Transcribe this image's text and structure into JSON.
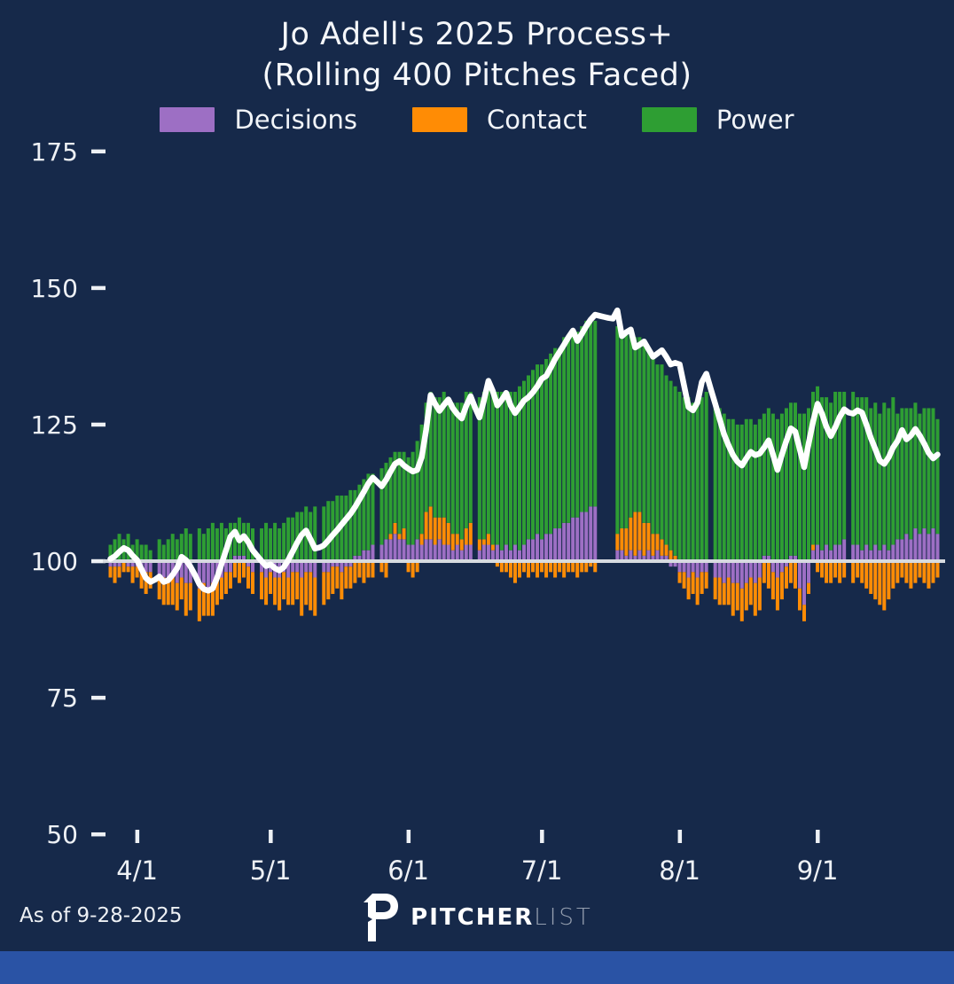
{
  "header": {
    "title_line1": "Jo Adell's 2025 Process+",
    "title_line2": "(Rolling 400 Pitches Faced)"
  },
  "legend": {
    "items": [
      {
        "label": "Decisions",
        "color_key": "decisions"
      },
      {
        "label": "Contact",
        "color_key": "contact"
      },
      {
        "label": "Power",
        "color_key": "power"
      }
    ]
  },
  "footer": {
    "as_of": "As of 9-28-2025",
    "brand_bold": "PITCHER",
    "brand_light": "LIST"
  },
  "colors": {
    "background": "#16294a",
    "decisions": "#9d6fc4",
    "contact": "#ff8c05",
    "power": "#2e9e33",
    "line": "#ffffff",
    "baseline_line": "#d7dbe0",
    "text": "#eef1f5",
    "brand_light_text": "#96a0b0",
    "bottom_bar": "#2a53a5"
  },
  "chart_data": {
    "type": "bar",
    "subtype": "diverging-stacked-bars-with-line",
    "title": "Jo Adell's 2025 Process+",
    "subtitle": "(Rolling 400 Pitches Faced)",
    "xlabel": "",
    "ylabel": "",
    "baseline": 100,
    "ylim": [
      45,
      180
    ],
    "y_ticks": [
      175,
      150,
      125,
      100,
      75,
      50
    ],
    "x_ticks": [
      "4/1",
      "5/1",
      "6/1",
      "7/1",
      "8/1",
      "9/1"
    ],
    "legend_position": "top",
    "grid": false,
    "note": "Bar values are signed offsets from the 100 baseline for each component (Decisions, Contact, Power); positive offsets stack upward from 100, negative stack downward. Last column is the rolling Process+ line value. Days with 0,0,0 are off days / All-Star break (no bar, line continues).",
    "columns": [
      "date",
      "decisions_offset",
      "contact_offset",
      "power_offset",
      "process_plus_line"
    ],
    "series_order": [
      "Decisions",
      "Contact",
      "Power"
    ],
    "line_series_name": "Process+",
    "days": [
      [
        "3/26",
        -1,
        -2,
        3,
        100.4
      ],
      [
        "3/27",
        -1,
        -3,
        4,
        100.9
      ],
      [
        "3/28",
        -1,
        -2,
        5,
        101.7
      ],
      [
        "3/29",
        0,
        -2,
        4,
        102.4
      ],
      [
        "3/30",
        -1,
        -1,
        5,
        102.0
      ],
      [
        "3/31",
        -1,
        -3,
        3,
        101.0
      ],
      [
        "4/1",
        -1,
        -2,
        4,
        100.2
      ],
      [
        "4/2",
        -2,
        -3,
        3,
        98.5
      ],
      [
        "4/3",
        -2,
        -4,
        3,
        96.9
      ],
      [
        "4/4",
        -2,
        -3,
        2,
        96.2
      ],
      [
        "4/5",
        0,
        0,
        0,
        96.6
      ],
      [
        "4/6",
        -3,
        -4,
        4,
        97.2
      ],
      [
        "4/7",
        -3,
        -5,
        3,
        96.2
      ],
      [
        "4/8",
        -4,
        -4,
        4,
        96.5
      ],
      [
        "4/9",
        -3,
        -5,
        5,
        97.5
      ],
      [
        "4/10",
        -4,
        -5,
        4,
        98.7
      ],
      [
        "4/11",
        -3,
        -4,
        5,
        100.8
      ],
      [
        "4/12",
        -4,
        -6,
        6,
        100.2
      ],
      [
        "4/13",
        -4,
        -5,
        5,
        99.0
      ],
      [
        "4/14",
        0,
        0,
        0,
        97.5
      ],
      [
        "4/15",
        -5,
        -6,
        6,
        95.8
      ],
      [
        "4/16",
        -4,
        -6,
        5,
        94.9
      ],
      [
        "4/17",
        -5,
        -5,
        6,
        94.6
      ],
      [
        "4/18",
        -4,
        -6,
        7,
        95.0
      ],
      [
        "4/19",
        -3,
        -5,
        6,
        97.0
      ],
      [
        "4/20",
        -3,
        -4,
        7,
        99.5
      ],
      [
        "4/21",
        -2,
        -4,
        6,
        102.0
      ],
      [
        "4/22",
        -2,
        -3,
        7,
        104.5
      ],
      [
        "4/23",
        1,
        -3,
        6,
        105.4
      ],
      [
        "4/24",
        1,
        -4,
        7,
        103.8
      ],
      [
        "4/25",
        1,
        -3,
        6,
        104.6
      ],
      [
        "4/26",
        -1,
        -4,
        7,
        103.5
      ],
      [
        "4/27",
        -2,
        -4,
        6,
        102.0
      ],
      [
        "4/28",
        0,
        0,
        0,
        101.0
      ],
      [
        "4/29",
        -2,
        -5,
        6,
        100.0
      ],
      [
        "4/30",
        -3,
        -5,
        7,
        99.1
      ],
      [
        "5/1",
        -2,
        -4,
        6,
        99.4
      ],
      [
        "5/2",
        -3,
        -5,
        7,
        98.7
      ],
      [
        "5/3",
        -3,
        -6,
        6,
        98.3
      ],
      [
        "5/4",
        -2,
        -5,
        7,
        98.9
      ],
      [
        "5/5",
        -3,
        -5,
        8,
        100.2
      ],
      [
        "5/6",
        -2,
        -6,
        8,
        101.8
      ],
      [
        "5/7",
        -2,
        -5,
        9,
        103.4
      ],
      [
        "5/8",
        -3,
        -7,
        9,
        104.8
      ],
      [
        "5/9",
        -2,
        -6,
        10,
        105.6
      ],
      [
        "5/10",
        -2,
        -7,
        9,
        104.0
      ],
      [
        "5/11",
        -3,
        -7,
        10,
        102.3
      ],
      [
        "5/12",
        0,
        0,
        0,
        102.5
      ],
      [
        "5/13",
        -2,
        -6,
        10,
        102.9
      ],
      [
        "5/14",
        -2,
        -5,
        11,
        103.8
      ],
      [
        "5/15",
        -1,
        -5,
        11,
        104.8
      ],
      [
        "5/16",
        -1,
        -4,
        12,
        105.7
      ],
      [
        "5/17",
        -2,
        -5,
        12,
        106.7
      ],
      [
        "5/18",
        -1,
        -4,
        12,
        107.7
      ],
      [
        "5/19",
        -1,
        -4,
        13,
        108.7
      ],
      [
        "5/20",
        1,
        -4,
        12,
        109.9
      ],
      [
        "5/21",
        1,
        -3,
        13,
        111.3
      ],
      [
        "5/22",
        2,
        -4,
        13,
        112.7
      ],
      [
        "5/23",
        2,
        -3,
        14,
        114.2
      ],
      [
        "5/24",
        3,
        -3,
        13,
        115.3
      ],
      [
        "5/25",
        0,
        0,
        0,
        114.5
      ],
      [
        "5/26",
        3,
        -2,
        14,
        113.7
      ],
      [
        "5/27",
        4,
        -3,
        14,
        114.9
      ],
      [
        "5/28",
        4,
        1,
        14,
        116.4
      ],
      [
        "5/29",
        5,
        2,
        13,
        117.8
      ],
      [
        "5/30",
        4,
        1,
        15,
        118.3
      ],
      [
        "5/31",
        4,
        2,
        14,
        117.5
      ],
      [
        "6/1",
        3,
        -2,
        16,
        116.9
      ],
      [
        "6/2",
        3,
        -3,
        17,
        116.4
      ],
      [
        "6/3",
        4,
        -2,
        18,
        116.7
      ],
      [
        "6/4",
        3,
        2,
        20,
        119.0
      ],
      [
        "6/5",
        4,
        5,
        20,
        124.0
      ],
      [
        "6/6",
        4,
        6,
        21,
        130.4
      ],
      [
        "6/7",
        3,
        5,
        22,
        128.8
      ],
      [
        "6/8",
        4,
        4,
        22,
        127.5
      ],
      [
        "6/9",
        3,
        5,
        23,
        128.6
      ],
      [
        "6/10",
        3,
        4,
        23,
        129.6
      ],
      [
        "6/11",
        2,
        3,
        24,
        128.0
      ],
      [
        "6/12",
        3,
        2,
        24,
        126.9
      ],
      [
        "6/13",
        2,
        2,
        25,
        126.1
      ],
      [
        "6/14",
        3,
        3,
        25,
        128.4
      ],
      [
        "6/15",
        3,
        4,
        24,
        130.2
      ],
      [
        "6/16",
        0,
        0,
        0,
        128.1
      ],
      [
        "6/17",
        2,
        2,
        26,
        126.3
      ],
      [
        "6/18",
        3,
        1,
        27,
        129.5
      ],
      [
        "6/19",
        3,
        2,
        28,
        133.0
      ],
      [
        "6/20",
        2,
        1,
        28,
        131.1
      ],
      [
        "6/21",
        3,
        -1,
        28,
        128.5
      ],
      [
        "6/22",
        2,
        -2,
        29,
        129.5
      ],
      [
        "6/23",
        3,
        -2,
        28,
        130.8
      ],
      [
        "6/24",
        2,
        -3,
        29,
        128.5
      ],
      [
        "6/25",
        3,
        -4,
        28,
        127.1
      ],
      [
        "6/26",
        2,
        -3,
        30,
        128.2
      ],
      [
        "6/27",
        3,
        -2,
        30,
        129.4
      ],
      [
        "6/28",
        4,
        -3,
        30,
        130.0
      ],
      [
        "6/29",
        4,
        -2,
        31,
        130.9
      ],
      [
        "6/30",
        5,
        -3,
        31,
        132.0
      ],
      [
        "7/1",
        4,
        -2,
        32,
        133.4
      ],
      [
        "7/2",
        5,
        -3,
        32,
        133.9
      ],
      [
        "7/3",
        5,
        -2,
        33,
        135.4
      ],
      [
        "7/4",
        6,
        -3,
        33,
        137.0
      ],
      [
        "7/5",
        6,
        -2,
        33,
        138.3
      ],
      [
        "7/6",
        7,
        -3,
        34,
        139.6
      ],
      [
        "7/7",
        7,
        -2,
        34,
        141.0
      ],
      [
        "7/8",
        8,
        -2,
        34,
        142.2
      ],
      [
        "7/9",
        8,
        -3,
        34,
        140.3
      ],
      [
        "7/10",
        9,
        -2,
        34,
        141.6
      ],
      [
        "7/11",
        9,
        -2,
        35,
        143.0
      ],
      [
        "7/12",
        10,
        -1,
        34,
        144.2
      ],
      [
        "7/13",
        10,
        -2,
        34,
        145.1
      ],
      [
        "7/14",
        0,
        0,
        0,
        144.9
      ],
      [
        "7/15",
        0,
        0,
        0,
        144.7
      ],
      [
        "7/16",
        0,
        0,
        0,
        144.5
      ],
      [
        "7/17",
        0,
        0,
        0,
        144.4
      ],
      [
        "7/18",
        2,
        3,
        38,
        145.9
      ],
      [
        "7/19",
        2,
        4,
        36,
        141.2
      ],
      [
        "7/20",
        1,
        5,
        36,
        141.9
      ],
      [
        "7/21",
        2,
        6,
        34,
        142.4
      ],
      [
        "7/22",
        1,
        8,
        32,
        139.1
      ],
      [
        "7/23",
        2,
        7,
        32,
        139.6
      ],
      [
        "7/24",
        1,
        6,
        33,
        140.2
      ],
      [
        "7/25",
        2,
        5,
        32,
        138.8
      ],
      [
        "7/26",
        1,
        4,
        32,
        137.4
      ],
      [
        "7/27",
        2,
        3,
        31,
        138.0
      ],
      [
        "7/28",
        1,
        3,
        32,
        138.6
      ],
      [
        "7/29",
        1,
        2,
        31,
        137.4
      ],
      [
        "7/30",
        -1,
        2,
        31,
        136.0
      ],
      [
        "7/31",
        -1,
        1,
        31,
        136.3
      ],
      [
        "8/1",
        -2,
        -2,
        31,
        136.0
      ],
      [
        "8/2",
        -2,
        -3,
        30,
        132.1
      ],
      [
        "8/3",
        -3,
        -4,
        30,
        128.2
      ],
      [
        "8/4",
        -2,
        -4,
        29,
        127.6
      ],
      [
        "8/5",
        -3,
        -5,
        30,
        129.0
      ],
      [
        "8/6",
        -2,
        -4,
        30,
        132.8
      ],
      [
        "8/7",
        -2,
        -3,
        31,
        134.3
      ],
      [
        "8/8",
        0,
        0,
        0,
        131.5
      ],
      [
        "8/9",
        -3,
        -4,
        29,
        128.8
      ],
      [
        "8/10",
        -3,
        -5,
        28,
        126.0
      ],
      [
        "8/11",
        -4,
        -4,
        27,
        123.2
      ],
      [
        "8/12",
        -3,
        -5,
        26,
        121.2
      ],
      [
        "8/13",
        -4,
        -6,
        26,
        119.4
      ],
      [
        "8/14",
        -4,
        -5,
        25,
        118.2
      ],
      [
        "8/15",
        -5,
        -6,
        25,
        117.5
      ],
      [
        "8/16",
        -4,
        -5,
        26,
        118.8
      ],
      [
        "8/17",
        -3,
        -5,
        26,
        120.0
      ],
      [
        "8/18",
        -4,
        -6,
        25,
        119.4
      ],
      [
        "8/19",
        -3,
        -6,
        26,
        119.7
      ],
      [
        "8/20",
        1,
        -4,
        26,
        120.8
      ],
      [
        "8/21",
        1,
        -5,
        27,
        122.1
      ],
      [
        "8/22",
        -2,
        -5,
        27,
        119.5
      ],
      [
        "8/23",
        -3,
        -6,
        26,
        116.7
      ],
      [
        "8/24",
        -2,
        -5,
        27,
        119.5
      ],
      [
        "8/25",
        -1,
        -4,
        28,
        122.0
      ],
      [
        "8/26",
        1,
        -4,
        28,
        124.3
      ],
      [
        "8/27",
        1,
        -5,
        28,
        123.7
      ],
      [
        "8/28",
        -5,
        -4,
        27,
        120.5
      ],
      [
        "8/29",
        -8,
        -3,
        27,
        117.2
      ],
      [
        "8/30",
        -4,
        -2,
        28,
        121.5
      ],
      [
        "8/31",
        2,
        1,
        28,
        125.5
      ],
      [
        "9/1",
        3,
        -2,
        29,
        128.8
      ],
      [
        "9/2",
        2,
        -3,
        28,
        127.0
      ],
      [
        "9/3",
        3,
        -4,
        27,
        124.6
      ],
      [
        "9/4",
        2,
        -4,
        27,
        122.9
      ],
      [
        "9/5",
        3,
        -3,
        28,
        124.5
      ],
      [
        "9/6",
        3,
        -4,
        28,
        126.4
      ],
      [
        "9/7",
        4,
        -3,
        27,
        127.8
      ],
      [
        "9/8",
        0,
        0,
        0,
        127.2
      ],
      [
        "9/9",
        3,
        -4,
        28,
        127.0
      ],
      [
        "9/10",
        3,
        -3,
        27,
        127.6
      ],
      [
        "9/11",
        2,
        -4,
        28,
        127.2
      ],
      [
        "9/12",
        3,
        -5,
        27,
        125.0
      ],
      [
        "9/13",
        2,
        -6,
        26,
        122.5
      ],
      [
        "9/14",
        3,
        -7,
        26,
        120.5
      ],
      [
        "9/15",
        2,
        -8,
        25,
        118.4
      ],
      [
        "9/16",
        3,
        -9,
        26,
        117.8
      ],
      [
        "9/17",
        2,
        -7,
        26,
        119.0
      ],
      [
        "9/18",
        3,
        -5,
        27,
        120.8
      ],
      [
        "9/19",
        4,
        -4,
        23,
        122.0
      ],
      [
        "9/20",
        4,
        -3,
        24,
        124.0
      ],
      [
        "9/21",
        5,
        -4,
        23,
        122.3
      ],
      [
        "9/22",
        4,
        -5,
        24,
        123.0
      ],
      [
        "9/23",
        6,
        -4,
        23,
        124.2
      ],
      [
        "9/24",
        5,
        -3,
        22,
        123.0
      ],
      [
        "9/25",
        6,
        -4,
        22,
        121.5
      ],
      [
        "9/26",
        5,
        -5,
        23,
        119.8
      ],
      [
        "9/27",
        6,
        -4,
        22,
        118.8
      ],
      [
        "9/28",
        5,
        -3,
        21,
        119.5
      ]
    ]
  }
}
